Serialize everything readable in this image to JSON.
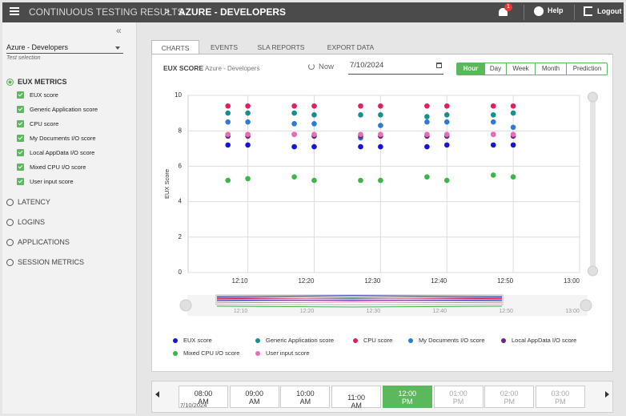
{
  "header": {
    "title": "CONTINUOUS TESTING RESULTS",
    "separator": ">",
    "subtitle": "AZURE - DEVELOPERS",
    "notifications": 1,
    "help": "Help",
    "logout": "Logout"
  },
  "sidebar": {
    "collapse": "«",
    "selection": "Azure - Developers",
    "selection_label": "Test selection",
    "groups": [
      {
        "label": "EUX METRICS",
        "items": [
          "EUX score",
          "Generic Application score",
          "CPU score",
          "My Documents I/O score",
          "Local AppData I/O score",
          "Mixed CPU I/O score",
          "User input score"
        ]
      },
      {
        "label": "LATENCY"
      },
      {
        "label": "LOGINS"
      },
      {
        "label": "APPLICATIONS"
      },
      {
        "label": "SESSION METRICS"
      }
    ]
  },
  "tabs": [
    "CHARTS",
    "EVENTS",
    "SLA REPORTS",
    "EXPORT DATA"
  ],
  "toolbar": {
    "title": "EUX SCORE",
    "subtitle": "Azure - Developers",
    "refresh": "Now",
    "date": "7/10/2024",
    "ranges": [
      "Hour",
      "Day",
      "Week",
      "Month",
      "Prediction"
    ]
  },
  "chart_data": {
    "type": "scatter",
    "y_label": "EUX Score",
    "x": [
      "12:07",
      "12:10",
      "12:17",
      "12:20",
      "12:27",
      "12:30",
      "12:37",
      "12:40",
      "12:47",
      "12:50"
    ],
    "xlim": [
      "12:01",
      "13:00"
    ],
    "xticks": [
      "12:10",
      "12:20",
      "12:30",
      "12:40",
      "12:50",
      "13:00"
    ],
    "ylim": [
      0,
      10
    ],
    "yticks": [
      0,
      2,
      4,
      6,
      8,
      10
    ],
    "grid": true,
    "series": [
      {
        "name": "EUX score",
        "color": "#1515d8",
        "values": [
          7.2,
          7.2,
          7.1,
          7.1,
          7.1,
          7.1,
          7.1,
          7.2,
          7.2,
          7.2
        ]
      },
      {
        "name": "Generic Application score",
        "color": "#178f8f",
        "values": [
          9.0,
          9.0,
          9.0,
          8.9,
          8.9,
          8.9,
          8.8,
          8.9,
          8.9,
          9.0
        ]
      },
      {
        "name": "CPU score",
        "color": "#e0205c",
        "values": [
          9.4,
          9.4,
          9.4,
          9.4,
          9.4,
          9.4,
          9.4,
          9.4,
          9.4,
          9.4
        ]
      },
      {
        "name": "My Documents I/O score",
        "color": "#2d7bd6",
        "values": [
          8.5,
          8.5,
          8.4,
          8.4,
          7.6,
          8.3,
          8.5,
          8.5,
          8.5,
          8.2
        ]
      },
      {
        "name": "Local AppData I/O score",
        "color": "#65278a",
        "values": [
          7.7,
          7.7,
          7.8,
          7.7,
          7.7,
          7.7,
          7.7,
          7.7,
          7.8,
          7.7
        ]
      },
      {
        "name": "Mixed CPU I/O score",
        "color": "#3cb549",
        "values": [
          5.2,
          5.3,
          5.4,
          5.2,
          5.2,
          5.2,
          5.4,
          5.2,
          5.5,
          5.4
        ]
      },
      {
        "name": "User input score",
        "color": "#e86cb6",
        "values": [
          7.8,
          7.8,
          7.8,
          7.8,
          7.8,
          7.8,
          7.8,
          7.8,
          7.8,
          7.8
        ]
      }
    ]
  },
  "timeline": {
    "slots": [
      "08:00 AM",
      "09:00 AM",
      "10:00 AM",
      "11:00 AM",
      "12:00 PM",
      "01:00 PM",
      "02:00 PM",
      "03:00 PM"
    ],
    "date": "7/10/2024"
  }
}
